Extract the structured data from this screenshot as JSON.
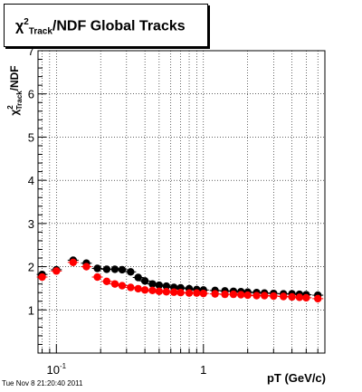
{
  "title": {
    "symbol": "χ",
    "sup": "2",
    "sub": "Track",
    "rest": "/NDF  Global Tracks"
  },
  "timestamp": "Tue Nov  8 21:20:40 2011",
  "chart_data": {
    "type": "scatter",
    "xlabel": "pT (GeV/c)",
    "ylabel": "χ²Track/NDF",
    "xscale": "log",
    "xlim": [
      0.075,
      6.7
    ],
    "ylim": [
      0,
      7
    ],
    "grid": true,
    "x_tick_labels": [
      "10⁻¹",
      "1"
    ],
    "y_tick_labels": [
      "1",
      "2",
      "3",
      "4",
      "5",
      "6",
      "7"
    ],
    "series": [
      {
        "color": "#000000",
        "x": [
          0.08,
          0.1,
          0.13,
          0.16,
          0.19,
          0.22,
          0.25,
          0.28,
          0.32,
          0.36,
          0.4,
          0.45,
          0.5,
          0.56,
          0.63,
          0.7,
          0.8,
          0.9,
          1.0,
          1.2,
          1.4,
          1.6,
          1.8,
          2.0,
          2.3,
          2.6,
          3.0,
          3.5,
          4.0,
          4.5,
          5.0,
          6.0
        ],
        "y": [
          1.82,
          1.93,
          2.15,
          2.08,
          1.96,
          1.94,
          1.94,
          1.93,
          1.88,
          1.75,
          1.67,
          1.6,
          1.57,
          1.55,
          1.52,
          1.51,
          1.49,
          1.47,
          1.46,
          1.45,
          1.44,
          1.43,
          1.42,
          1.41,
          1.4,
          1.39,
          1.38,
          1.37,
          1.37,
          1.36,
          1.35,
          1.34
        ]
      },
      {
        "color": "#ff0000",
        "x": [
          0.08,
          0.1,
          0.13,
          0.16,
          0.19,
          0.22,
          0.25,
          0.28,
          0.32,
          0.36,
          0.4,
          0.45,
          0.5,
          0.56,
          0.63,
          0.7,
          0.8,
          0.9,
          1.0,
          1.2,
          1.4,
          1.6,
          1.8,
          2.0,
          2.3,
          2.6,
          3.0,
          3.5,
          4.0,
          4.5,
          5.0,
          6.0
        ],
        "y": [
          1.76,
          1.9,
          2.1,
          2.0,
          1.76,
          1.66,
          1.6,
          1.56,
          1.52,
          1.49,
          1.46,
          1.45,
          1.43,
          1.42,
          1.41,
          1.4,
          1.39,
          1.39,
          1.38,
          1.37,
          1.36,
          1.36,
          1.35,
          1.34,
          1.33,
          1.33,
          1.32,
          1.31,
          1.3,
          1.29,
          1.28,
          1.26
        ]
      }
    ]
  }
}
